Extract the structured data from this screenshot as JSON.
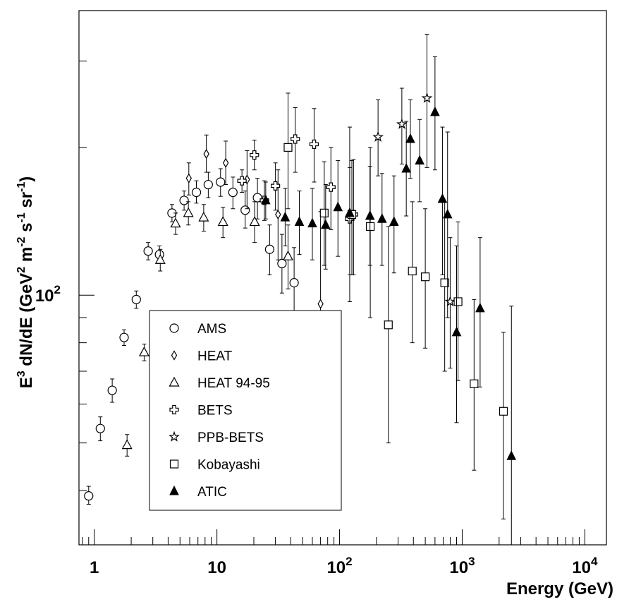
{
  "chart_data": {
    "type": "scatter",
    "xlabel": "Energy  (GeV)",
    "ylabel_parts": {
      "base": "E",
      "exp1": "3",
      "mid": " dN/dE (GeV",
      "exp2": "2",
      "mid2": " m",
      "exp3": "-2",
      "mid3": " s",
      "exp4": "-1",
      "mid4": " sr",
      "exp5": "-1",
      "end": ")"
    },
    "x_scale": "log",
    "y_scale": "log",
    "xlim": [
      0.75,
      15000
    ],
    "ylim": [
      31,
      380
    ],
    "x_ticks": [
      {
        "value": 1,
        "base": "1",
        "exp": ""
      },
      {
        "value": 10,
        "base": "10",
        "exp": ""
      },
      {
        "value": 100,
        "base": "10",
        "exp": "2"
      },
      {
        "value": 1000,
        "base": "10",
        "exp": "3"
      },
      {
        "value": 10000,
        "base": "10",
        "exp": "4"
      }
    ],
    "y_ticks": [
      {
        "value": 100,
        "base": "10",
        "exp": "2"
      }
    ],
    "legend_position": "lower-left",
    "series": [
      {
        "name": "AMS",
        "marker": "circle-open",
        "points": [
          {
            "x": 0.9,
            "y": 39,
            "lo": 37.5,
            "hi": 40.8
          },
          {
            "x": 1.12,
            "y": 53.5,
            "lo": 50.5,
            "hi": 56.5
          },
          {
            "x": 1.4,
            "y": 64,
            "lo": 60.5,
            "hi": 67.5
          },
          {
            "x": 1.75,
            "y": 82,
            "lo": 79,
            "hi": 85
          },
          {
            "x": 2.2,
            "y": 98,
            "lo": 94,
            "hi": 102
          },
          {
            "x": 2.75,
            "y": 123,
            "lo": 118,
            "hi": 128
          },
          {
            "x": 3.4,
            "y": 121,
            "lo": 116,
            "hi": 126
          },
          {
            "x": 4.3,
            "y": 147,
            "lo": 141,
            "hi": 153
          },
          {
            "x": 5.4,
            "y": 156,
            "lo": 149,
            "hi": 163
          },
          {
            "x": 6.8,
            "y": 162,
            "lo": 154,
            "hi": 171
          },
          {
            "x": 8.5,
            "y": 168,
            "lo": 158,
            "hi": 178
          },
          {
            "x": 10.7,
            "y": 170,
            "lo": 159,
            "hi": 181
          },
          {
            "x": 13.5,
            "y": 162,
            "lo": 150,
            "hi": 174
          },
          {
            "x": 17,
            "y": 149,
            "lo": 137,
            "hi": 163
          },
          {
            "x": 21.4,
            "y": 158,
            "lo": 143,
            "hi": 173
          },
          {
            "x": 26.9,
            "y": 124,
            "lo": 110,
            "hi": 139
          },
          {
            "x": 33.9,
            "y": 116,
            "lo": 101,
            "hi": 133
          },
          {
            "x": 42.6,
            "y": 106,
            "lo": 90,
            "hi": 125
          }
        ]
      },
      {
        "name": "HEAT",
        "marker": "diamond-open",
        "points": [
          {
            "x": 5.9,
            "y": 173,
            "lo": 160,
            "hi": 186
          },
          {
            "x": 8.2,
            "y": 194,
            "lo": 178,
            "hi": 212
          },
          {
            "x": 11.8,
            "y": 186,
            "lo": 168,
            "hi": 206
          },
          {
            "x": 17.6,
            "y": 172,
            "lo": 150,
            "hi": 197
          },
          {
            "x": 31.5,
            "y": 146,
            "lo": 118,
            "hi": 180
          },
          {
            "x": 70,
            "y": 96,
            "lo": 62,
            "hi": 148
          }
        ]
      },
      {
        "name": "HEAT 94-95",
        "marker": "triangle-open",
        "points": [
          {
            "x": 1.85,
            "y": 49.5,
            "lo": 47,
            "hi": 52
          },
          {
            "x": 2.55,
            "y": 76.5,
            "lo": 73.5,
            "hi": 79.5
          },
          {
            "x": 3.45,
            "y": 118,
            "lo": 112,
            "hi": 124
          },
          {
            "x": 4.6,
            "y": 140,
            "lo": 133,
            "hi": 147
          },
          {
            "x": 5.85,
            "y": 147,
            "lo": 139,
            "hi": 155
          },
          {
            "x": 7.8,
            "y": 144,
            "lo": 135,
            "hi": 153
          },
          {
            "x": 11.2,
            "y": 141,
            "lo": 131,
            "hi": 151
          },
          {
            "x": 20.3,
            "y": 141,
            "lo": 128,
            "hi": 155
          },
          {
            "x": 38,
            "y": 120,
            "lo": 103,
            "hi": 139
          }
        ]
      },
      {
        "name": "BETS",
        "marker": "cross-open",
        "points": [
          {
            "x": 16,
            "y": 171,
            "lo": 162,
            "hi": 180
          },
          {
            "x": 20.2,
            "y": 193,
            "lo": 180,
            "hi": 207
          },
          {
            "x": 24.4,
            "y": 156,
            "lo": 142,
            "hi": 171
          },
          {
            "x": 30,
            "y": 167,
            "lo": 149,
            "hi": 186
          },
          {
            "x": 43.5,
            "y": 208,
            "lo": 178,
            "hi": 241
          },
          {
            "x": 62,
            "y": 203,
            "lo": 170,
            "hi": 240
          },
          {
            "x": 85,
            "y": 166,
            "lo": 136,
            "hi": 200
          },
          {
            "x": 121,
            "y": 143,
            "lo": 110,
            "hi": 182
          },
          {
            "x": 130,
            "y": 146,
            "lo": 110,
            "hi": 189
          }
        ]
      },
      {
        "name": "PPB-BETS",
        "marker": "star-open",
        "points": [
          {
            "x": 206,
            "y": 210,
            "lo": 175,
            "hi": 250
          },
          {
            "x": 322,
            "y": 223,
            "lo": 185,
            "hi": 264
          },
          {
            "x": 516,
            "y": 252,
            "lo": 182,
            "hi": 340
          },
          {
            "x": 798,
            "y": 97,
            "lo": 71,
            "hi": 131
          }
        ]
      },
      {
        "name": "Kobayashi",
        "marker": "square-open",
        "points": [
          {
            "x": 38,
            "y": 200,
            "lo": 150,
            "hi": 258
          },
          {
            "x": 75,
            "y": 147,
            "lo": 115,
            "hi": 187
          },
          {
            "x": 126,
            "y": 146,
            "lo": 110,
            "hi": 188
          },
          {
            "x": 178,
            "y": 138,
            "lo": 90,
            "hi": 200
          },
          {
            "x": 250,
            "y": 87,
            "lo": 50,
            "hi": 138
          },
          {
            "x": 392,
            "y": 112,
            "lo": 80,
            "hi": 155
          },
          {
            "x": 500,
            "y": 109,
            "lo": 78,
            "hi": 150
          },
          {
            "x": 720,
            "y": 106,
            "lo": 70,
            "hi": 155
          },
          {
            "x": 925,
            "y": 97,
            "lo": 67,
            "hi": 141
          },
          {
            "x": 1250,
            "y": 66,
            "lo": 44,
            "hi": 98
          },
          {
            "x": 2170,
            "y": 58,
            "lo": 35,
            "hi": 84
          }
        ]
      },
      {
        "name": "ATIC",
        "marker": "triangle-filled",
        "points": [
          {
            "x": 25,
            "y": 156,
            "lo": 143,
            "hi": 170
          },
          {
            "x": 36,
            "y": 144,
            "lo": 126,
            "hi": 165
          },
          {
            "x": 47,
            "y": 141,
            "lo": 121,
            "hi": 163
          },
          {
            "x": 60,
            "y": 140,
            "lo": 118,
            "hi": 165
          },
          {
            "x": 77,
            "y": 139,
            "lo": 113,
            "hi": 168
          },
          {
            "x": 97,
            "y": 151,
            "lo": 120,
            "hi": 188
          },
          {
            "x": 121,
            "y": 147,
            "lo": 97,
            "hi": 220
          },
          {
            "x": 177,
            "y": 145,
            "lo": 115,
            "hi": 183
          },
          {
            "x": 222,
            "y": 143,
            "lo": 115,
            "hi": 177
          },
          {
            "x": 278,
            "y": 141,
            "lo": 111,
            "hi": 175
          },
          {
            "x": 350,
            "y": 181,
            "lo": 145,
            "hi": 226
          },
          {
            "x": 378,
            "y": 208,
            "lo": 173,
            "hi": 250
          },
          {
            "x": 450,
            "y": 188,
            "lo": 155,
            "hi": 228
          },
          {
            "x": 600,
            "y": 236,
            "lo": 180,
            "hi": 306
          },
          {
            "x": 690,
            "y": 157,
            "lo": 110,
            "hi": 220
          },
          {
            "x": 760,
            "y": 146,
            "lo": 90,
            "hi": 215
          },
          {
            "x": 900,
            "y": 84,
            "lo": 55,
            "hi": 126
          },
          {
            "x": 1400,
            "y": 94,
            "lo": 65,
            "hi": 131
          },
          {
            "x": 2520,
            "y": 47,
            "lo": 29,
            "hi": 95
          }
        ]
      }
    ]
  }
}
